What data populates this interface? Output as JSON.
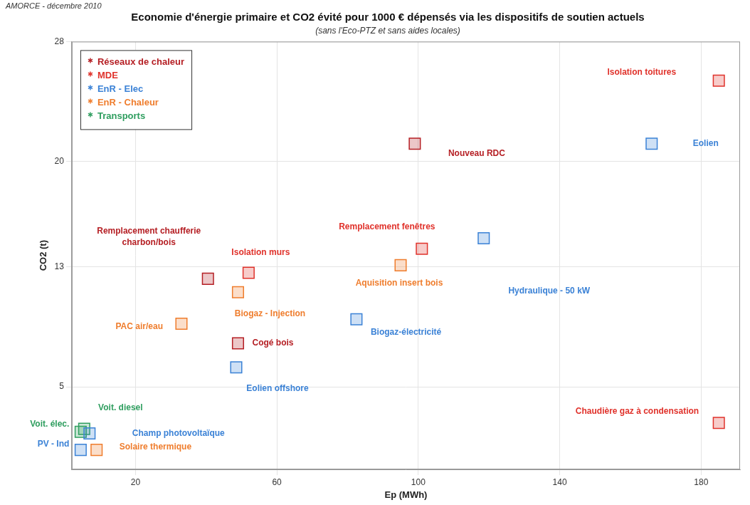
{
  "chart_data": {
    "type": "scatter",
    "source": "AMORCE - décembre 2010",
    "title": "Economie d'énergie primaire et CO2 évité pour 1000 € dépensés via les dispositifs de soutien actuels",
    "subtitle": "(sans l'Eco-PTZ et sans aides locales)",
    "x_label": "Ep (MWh)",
    "y_label": "CO2 (t)",
    "xlim": [
      2,
      191
    ],
    "ylim": [
      -0.5,
      28
    ],
    "xticks": [
      20,
      60,
      100,
      140,
      180
    ],
    "yticks": [
      5,
      13,
      20,
      28
    ],
    "grid": true,
    "legend": "top-left",
    "marker": "square",
    "series": [
      {
        "name": "Réseaux de chaleur",
        "color": "#b51f24",
        "x": [
          99,
          40.5,
          49
        ],
        "values": [
          21.2,
          12.2,
          7.9
        ],
        "point_labels": [
          "Nouveau RDC",
          "Remplacement chaufferie charbon/bois",
          "Cogé bois"
        ]
      },
      {
        "name": "MDE",
        "color": "#e0322b",
        "x": [
          185,
          101,
          52,
          185
        ],
        "values": [
          25.4,
          14.2,
          12.6,
          2.6
        ],
        "point_labels": [
          "Isolation toitures",
          "Remplacement fenêtres",
          "Isolation murs",
          "Chaudière gaz à condensation"
        ]
      },
      {
        "name": "EnR - Elec",
        "color": "#3b82d6",
        "x": [
          166,
          118.5,
          82.5,
          48.5,
          7,
          4.5
        ],
        "values": [
          21.2,
          14.9,
          9.5,
          6.3,
          1.9,
          0.8
        ],
        "point_labels": [
          "Eolien",
          "Hydraulique - 50 kW",
          "Biogaz-électricité",
          "Eolien offshore",
          "Champ photovoltaïque",
          "PV - Ind"
        ]
      },
      {
        "name": "EnR - Chaleur",
        "color": "#ef7d2d",
        "x": [
          95,
          49,
          33,
          9
        ],
        "values": [
          13.1,
          11.3,
          9.2,
          0.8
        ],
        "point_labels": [
          "Aquisition insert bois",
          "Biogaz - Injection",
          "PAC air/eau",
          "Solaire thermique"
        ]
      },
      {
        "name": "Transports",
        "color": "#2f9e5f",
        "x": [
          5.5,
          4.5
        ],
        "values": [
          2.2,
          2.0
        ],
        "point_labels": [
          "Voit. diesel",
          "Voit. élec."
        ]
      }
    ]
  }
}
